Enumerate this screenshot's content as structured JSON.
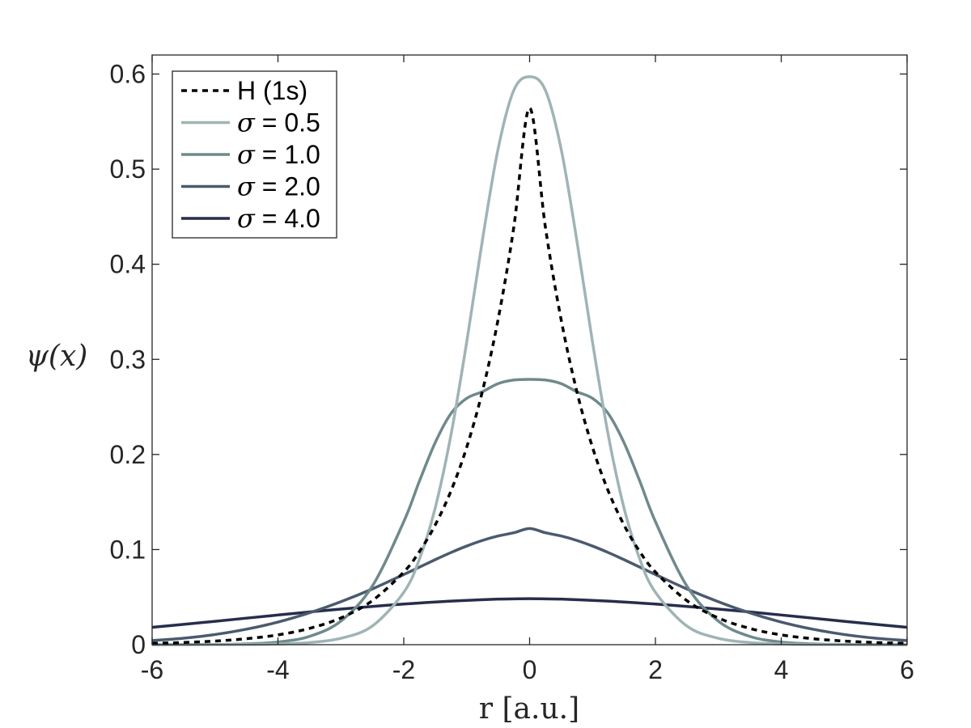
{
  "chart_data": {
    "type": "line",
    "title": "",
    "xlabel": "r [a.u.]",
    "ylabel": "ψ(x)",
    "xlim": [
      -6,
      6
    ],
    "ylim": [
      0,
      0.62
    ],
    "xticks": [
      -6,
      -4,
      -2,
      0,
      2,
      4,
      6
    ],
    "xtick_labels": [
      "-6",
      "-4",
      "-2",
      "0",
      "2",
      "4",
      "6"
    ],
    "yticks": [
      0,
      0.1,
      0.2,
      0.3,
      0.4,
      0.5,
      0.6
    ],
    "ytick_labels": [
      "0",
      "0.1",
      "0.2",
      "0.3",
      "0.4",
      "0.5",
      "0.6"
    ],
    "grid": false,
    "legend_position": "top-left",
    "x": [
      -6,
      -5.5,
      -5,
      -4.5,
      -4,
      -3.5,
      -3,
      -2.5,
      -2,
      -1.75,
      -1.5,
      -1.25,
      -1,
      -0.75,
      -0.5,
      -0.25,
      0,
      0.25,
      0.5,
      0.75,
      1,
      1.25,
      1.5,
      1.75,
      2,
      2.5,
      3,
      3.5,
      4,
      4.5,
      5,
      5.5,
      6
    ],
    "series": [
      {
        "name": "H (1s)",
        "color": "#000000",
        "style": "dotted",
        "values": [
          0.0014,
          0.0023,
          0.0038,
          0.0063,
          0.0103,
          0.0171,
          0.0281,
          0.0463,
          0.0764,
          0.098,
          0.1259,
          0.1616,
          0.2075,
          0.2665,
          0.3422,
          0.4394,
          0.5642,
          0.4394,
          0.3422,
          0.2665,
          0.2075,
          0.1616,
          0.1259,
          0.098,
          0.0764,
          0.0463,
          0.0281,
          0.0171,
          0.0103,
          0.0063,
          0.0038,
          0.0023,
          0.0014
        ]
      },
      {
        "name": "σ = 0.5",
        "color": "#9fb4b5",
        "style": "solid",
        "values": [
          0.0,
          0.0,
          0.0001,
          0.0002,
          0.0007,
          0.0022,
          0.0067,
          0.0196,
          0.0551,
          0.0902,
          0.1439,
          0.2205,
          0.3181,
          0.4253,
          0.5215,
          0.5831,
          0.5971,
          0.5831,
          0.5215,
          0.4253,
          0.3181,
          0.2205,
          0.1439,
          0.0902,
          0.0551,
          0.0196,
          0.0067,
          0.0022,
          0.0007,
          0.0002,
          0.0001,
          0.0,
          0.0
        ]
      },
      {
        "name": "σ = 1.0",
        "color": "#6f8a8c",
        "style": "solid",
        "values": [
          0.0,
          0.0001,
          0.0002,
          0.0008,
          0.0028,
          0.0087,
          0.0248,
          0.0616,
          0.1294,
          0.1722,
          0.2125,
          0.243,
          0.259,
          0.266,
          0.2745,
          0.2783,
          0.279,
          0.2783,
          0.2745,
          0.266,
          0.259,
          0.243,
          0.2125,
          0.1722,
          0.1294,
          0.0616,
          0.0248,
          0.0087,
          0.0028,
          0.0008,
          0.0002,
          0.0001,
          0.0
        ]
      },
      {
        "name": "σ = 2.0",
        "color": "#4b5a6e",
        "style": "solid",
        "values": [
          0.0043,
          0.0068,
          0.0107,
          0.0163,
          0.0238,
          0.0335,
          0.0452,
          0.0586,
          0.0738,
          0.0816,
          0.0894,
          0.0969,
          0.1037,
          0.1096,
          0.1143,
          0.1177,
          0.1222,
          0.1177,
          0.1143,
          0.1096,
          0.1037,
          0.0969,
          0.0894,
          0.0816,
          0.0738,
          0.0586,
          0.0452,
          0.0335,
          0.0238,
          0.0163,
          0.0107,
          0.0068,
          0.0043
        ]
      },
      {
        "name": "σ = 4.0",
        "color": "#272d4c",
        "style": "solid",
        "values": [
          0.0183,
          0.0214,
          0.0246,
          0.0279,
          0.0312,
          0.0344,
          0.0374,
          0.0402,
          0.0427,
          0.0438,
          0.0449,
          0.0458,
          0.0466,
          0.0473,
          0.0479,
          0.0482,
          0.0484,
          0.0482,
          0.0479,
          0.0473,
          0.0466,
          0.0458,
          0.0449,
          0.0438,
          0.0427,
          0.0402,
          0.0374,
          0.0344,
          0.0312,
          0.0279,
          0.0246,
          0.0214,
          0.0183
        ]
      }
    ]
  }
}
